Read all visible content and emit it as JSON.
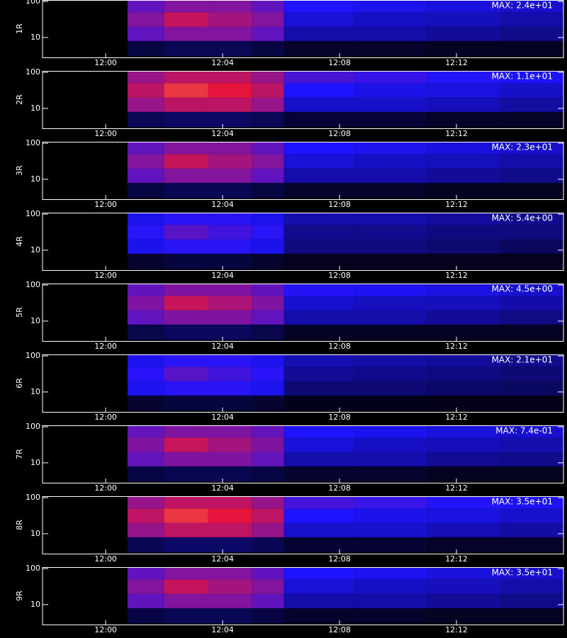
{
  "chart_data": [
    {
      "type": "heatmap",
      "ylabel": "1R",
      "annotation": "MAX: 2.4e+01",
      "log_y": true,
      "zlim": [
        0,
        24
      ],
      "xlim": [
        -2.16,
        15.66
      ],
      "xticks": [
        {
          "value": 0,
          "label": "12:00"
        },
        {
          "value": 4,
          "label": "12:04"
        },
        {
          "value": 8,
          "label": "12:08"
        },
        {
          "value": 12,
          "label": "12:12"
        }
      ],
      "ylim": [
        2.8,
        110
      ],
      "yticks": [
        10,
        100
      ],
      "x_bins": [
        0.75,
        2,
        3.5,
        5,
        6.1,
        8.5,
        11,
        13.5,
        15.66
      ],
      "y_bins": [
        3,
        8,
        20,
        50,
        110
      ],
      "z": [
        [
          1.9,
          2.4,
          2.4,
          1.9,
          1.2,
          1.2,
          1,
          1
        ],
        [
          9.6,
          10.8,
          10.8,
          9.6,
          4.8,
          4.8,
          4.3,
          3.8
        ],
        [
          10.8,
          13.2,
          12,
          10.8,
          6,
          5.5,
          5.3,
          4.8
        ],
        [
          9.6,
          10.8,
          10.8,
          9.6,
          7.2,
          6.7,
          6.2,
          5.8
        ]
      ]
    },
    {
      "type": "heatmap",
      "ylabel": "2R",
      "annotation": "MAX: 1.1e+01",
      "log_y": true,
      "zlim": [
        0,
        11
      ],
      "xlim": [
        -2.16,
        15.66
      ],
      "xticks": [
        {
          "value": 0,
          "label": "12:00"
        },
        {
          "value": 4,
          "label": "12:04"
        },
        {
          "value": 8,
          "label": "12:08"
        },
        {
          "value": 12,
          "label": "12:12"
        }
      ],
      "ylim": [
        2.8,
        110
      ],
      "yticks": [
        10,
        100
      ],
      "x_bins": [
        0.75,
        2,
        3.5,
        5,
        6.1,
        8.5,
        11,
        13.5,
        15.66
      ],
      "y_bins": [
        3,
        8,
        20,
        50,
        110
      ],
      "z": [
        [
          1.1,
          1.3,
          1.3,
          1.1,
          0.7,
          0.7,
          0.5,
          0.5
        ],
        [
          5.3,
          5.9,
          5.9,
          5.3,
          2.6,
          2.6,
          2.4,
          2.1
        ],
        [
          5.9,
          7.3,
          6.6,
          5.9,
          3.3,
          3,
          2.9,
          2.6
        ],
        [
          5.3,
          5.9,
          5.9,
          5.3,
          4,
          3.7,
          3.4,
          3.2
        ]
      ]
    },
    {
      "type": "heatmap",
      "ylabel": "3R",
      "annotation": "MAX: 2.3e+01",
      "log_y": true,
      "zlim": [
        0,
        23
      ],
      "xlim": [
        -2.16,
        15.66
      ],
      "xticks": [
        {
          "value": 0,
          "label": "12:00"
        },
        {
          "value": 4,
          "label": "12:04"
        },
        {
          "value": 8,
          "label": "12:08"
        },
        {
          "value": 12,
          "label": "12:12"
        }
      ],
      "ylim": [
        2.8,
        110
      ],
      "yticks": [
        10,
        100
      ],
      "x_bins": [
        0.75,
        2,
        3.5,
        5,
        6.1,
        8.5,
        11,
        13.5,
        15.66
      ],
      "y_bins": [
        3,
        8,
        20,
        50,
        110
      ],
      "z": [
        [
          1.8,
          2.3,
          2.3,
          1.8,
          1.2,
          1.2,
          0.9,
          0.9
        ],
        [
          9.2,
          10.4,
          10.4,
          9.2,
          4.6,
          4.6,
          4.1,
          3.7
        ],
        [
          10.4,
          12.7,
          11.5,
          10.4,
          5.8,
          5.3,
          5.1,
          4.6
        ],
        [
          9.2,
          10.4,
          10.4,
          9.2,
          6.9,
          6.4,
          6,
          5.5
        ]
      ]
    },
    {
      "type": "heatmap",
      "ylabel": "4R",
      "annotation": "MAX: 5.4e+00",
      "log_y": true,
      "zlim": [
        0,
        5.4
      ],
      "xlim": [
        -2.16,
        15.66
      ],
      "xticks": [
        {
          "value": 0,
          "label": "12:00"
        },
        {
          "value": 4,
          "label": "12:04"
        },
        {
          "value": 8,
          "label": "12:08"
        },
        {
          "value": 12,
          "label": "12:12"
        }
      ],
      "ylim": [
        2.8,
        110
      ],
      "yticks": [
        10,
        100
      ],
      "x_bins": [
        0.75,
        2,
        3.5,
        5,
        6.1,
        8.5,
        11,
        13.5,
        15.66
      ],
      "y_bins": [
        3,
        8,
        20,
        50,
        110
      ],
      "z": [
        [
          0.3,
          0.4,
          0.4,
          0.3,
          0.2,
          0.2,
          0.2,
          0.2
        ],
        [
          1.5,
          1.7,
          1.7,
          1.5,
          0.8,
          0.8,
          0.7,
          0.6
        ],
        [
          1.7,
          2.1,
          1.9,
          1.7,
          0.9,
          0.9,
          0.8,
          0.8
        ],
        [
          1.5,
          1.7,
          1.7,
          1.5,
          1.1,
          1.1,
          1,
          0.9
        ]
      ]
    },
    {
      "type": "heatmap",
      "ylabel": "5R",
      "annotation": "MAX: 4.5e+00",
      "log_y": true,
      "zlim": [
        0,
        4.5
      ],
      "xlim": [
        -2.16,
        15.66
      ],
      "xticks": [
        {
          "value": 0,
          "label": "12:00"
        },
        {
          "value": 4,
          "label": "12:04"
        },
        {
          "value": 8,
          "label": "12:08"
        },
        {
          "value": 12,
          "label": "12:12"
        }
      ],
      "ylim": [
        2.8,
        110
      ],
      "yticks": [
        10,
        100
      ],
      "x_bins": [
        0.75,
        2,
        3.5,
        5,
        6.1,
        8.5,
        11,
        13.5,
        15.66
      ],
      "y_bins": [
        3,
        8,
        20,
        50,
        110
      ],
      "z": [
        [
          0.4,
          0.5,
          0.5,
          0.4,
          0.2,
          0.2,
          0.2,
          0.2
        ],
        [
          1.8,
          2,
          2,
          1.8,
          0.9,
          0.9,
          0.8,
          0.7
        ],
        [
          2,
          2.5,
          2.3,
          2,
          1.1,
          1,
          1,
          0.9
        ],
        [
          1.8,
          2,
          2,
          1.8,
          1.4,
          1.3,
          1.2,
          1.1
        ]
      ]
    },
    {
      "type": "heatmap",
      "ylabel": "6R",
      "annotation": "MAX: 2.1e+01",
      "log_y": true,
      "zlim": [
        0,
        21
      ],
      "xlim": [
        -2.16,
        15.66
      ],
      "xticks": [
        {
          "value": 0,
          "label": "12:00"
        },
        {
          "value": 4,
          "label": "12:04"
        },
        {
          "value": 8,
          "label": "12:08"
        },
        {
          "value": 12,
          "label": "12:12"
        }
      ],
      "ylim": [
        2.8,
        110
      ],
      "yticks": [
        10,
        100
      ],
      "x_bins": [
        0.75,
        2,
        3.5,
        5,
        6.1,
        8.5,
        11,
        13.5,
        15.66
      ],
      "y_bins": [
        3,
        8,
        20,
        50,
        110
      ],
      "z": [
        [
          1.2,
          1.5,
          1.5,
          1.2,
          0.7,
          0.7,
          0.6,
          0.6
        ],
        [
          5.9,
          6.6,
          6.6,
          5.9,
          2.9,
          2.9,
          2.6,
          2.4
        ],
        [
          6.6,
          8.1,
          7.4,
          6.6,
          3.7,
          3.4,
          3.2,
          2.9
        ],
        [
          5.9,
          6.6,
          6.6,
          5.9,
          4.4,
          4.1,
          3.8,
          3.5
        ]
      ]
    },
    {
      "type": "heatmap",
      "ylabel": "7R",
      "annotation": "MAX: 7.4e-01",
      "log_y": true,
      "zlim": [
        0,
        0.74
      ],
      "xlim": [
        -2.16,
        15.66
      ],
      "xticks": [
        {
          "value": 0,
          "label": "12:00"
        },
        {
          "value": 4,
          "label": "12:04"
        },
        {
          "value": 8,
          "label": "12:08"
        },
        {
          "value": 12,
          "label": "12:12"
        }
      ],
      "ylim": [
        2.8,
        110
      ],
      "yticks": [
        10,
        100
      ],
      "x_bins": [
        0.75,
        2,
        3.5,
        5,
        6.1,
        8.5,
        11,
        13.5,
        15.66
      ],
      "y_bins": [
        3,
        8,
        20,
        50,
        110
      ],
      "z": [
        [
          0.06,
          0.07,
          0.07,
          0.06,
          0.04,
          0.04,
          0.03,
          0.03
        ],
        [
          0.3,
          0.33,
          0.33,
          0.3,
          0.15,
          0.15,
          0.13,
          0.12
        ],
        [
          0.33,
          0.41,
          0.37,
          0.33,
          0.19,
          0.17,
          0.16,
          0.15
        ],
        [
          0.3,
          0.33,
          0.33,
          0.3,
          0.22,
          0.21,
          0.19,
          0.18
        ]
      ]
    },
    {
      "type": "heatmap",
      "ylabel": "8R",
      "annotation": "MAX: 3.5e+01",
      "log_y": true,
      "zlim": [
        0,
        35
      ],
      "xlim": [
        -2.16,
        15.66
      ],
      "xticks": [
        {
          "value": 0,
          "label": "12:00"
        },
        {
          "value": 4,
          "label": "12:04"
        },
        {
          "value": 8,
          "label": "12:08"
        },
        {
          "value": 12,
          "label": "12:12"
        }
      ],
      "ylim": [
        2.8,
        110
      ],
      "yticks": [
        10,
        100
      ],
      "x_bins": [
        0.75,
        2,
        3.5,
        5,
        6.1,
        8.5,
        11,
        13.5,
        15.66
      ],
      "y_bins": [
        3,
        8,
        20,
        50,
        110
      ],
      "z": [
        [
          3.4,
          4.2,
          4.2,
          3.4,
          2.1,
          2.1,
          1.7,
          1.7
        ],
        [
          16.8,
          18.9,
          18.9,
          16.8,
          8.4,
          8.4,
          7.6,
          6.7
        ],
        [
          18.9,
          23.1,
          21,
          18.9,
          10.5,
          9.7,
          9.2,
          8.4
        ],
        [
          16.8,
          18.9,
          18.9,
          16.8,
          12.6,
          11.8,
          10.9,
          10.1
        ]
      ]
    },
    {
      "type": "heatmap",
      "ylabel": "9R",
      "annotation": "MAX: 3.5e+01",
      "log_y": true,
      "zlim": [
        0,
        35
      ],
      "xlim": [
        -2.16,
        15.66
      ],
      "xticks": [
        {
          "value": 0,
          "label": "12:00"
        },
        {
          "value": 4,
          "label": "12:04"
        },
        {
          "value": 8,
          "label": "12:08"
        },
        {
          "value": 12,
          "label": "12:12"
        }
      ],
      "ylim": [
        2.8,
        110
      ],
      "yticks": [
        10,
        100
      ],
      "x_bins": [
        0.75,
        2,
        3.5,
        5,
        6.1,
        8.5,
        11,
        13.5,
        15.66
      ],
      "y_bins": [
        3,
        8,
        20,
        50,
        110
      ],
      "z": [
        [
          2.8,
          3.5,
          3.5,
          2.8,
          1.8,
          1.8,
          1.4,
          1.4
        ],
        [
          14,
          15.8,
          15.8,
          14,
          7,
          7,
          6.3,
          5.6
        ],
        [
          15.8,
          19.3,
          17.5,
          15.8,
          8.8,
          8.1,
          7.7,
          7
        ],
        [
          14,
          15.8,
          15.8,
          14,
          10.5,
          9.8,
          9.1,
          8.4
        ]
      ]
    }
  ]
}
